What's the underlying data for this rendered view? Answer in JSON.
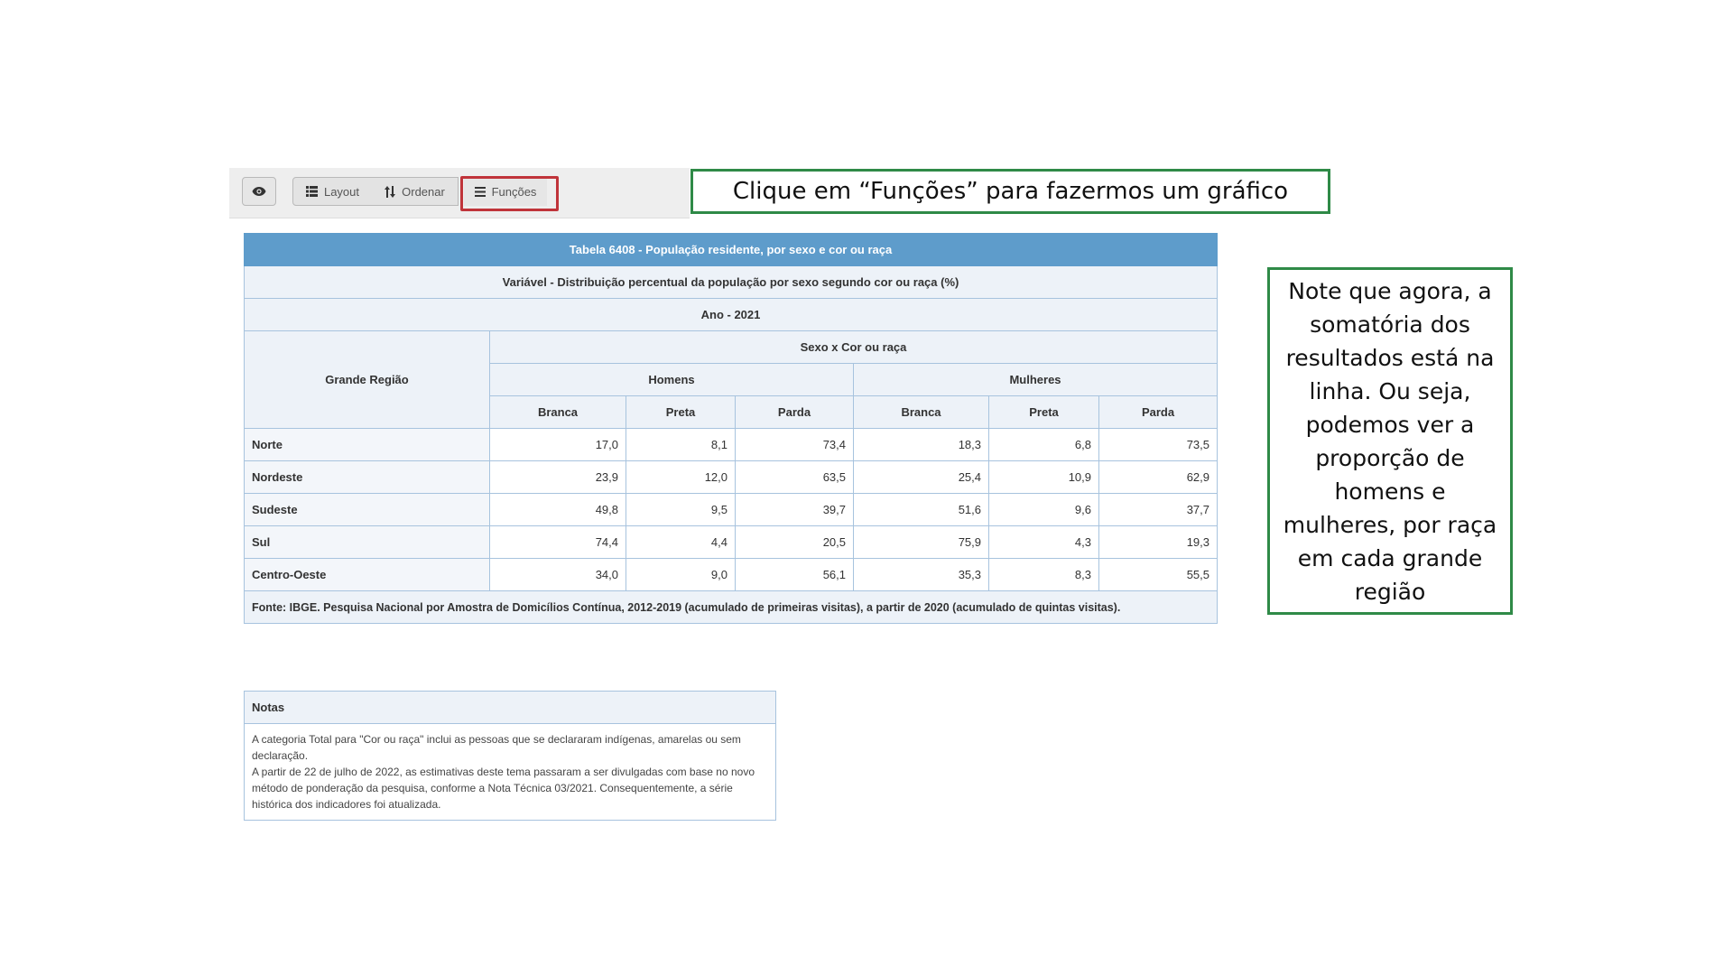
{
  "toolbar": {
    "layout_label": "Layout",
    "ordenar_label": "Ordenar",
    "funcoes_label": "Funções"
  },
  "callouts": {
    "top": "Clique em “Funções” para fazermos um gráfico",
    "right": "Note que agora, a somatória dos resultados está na linha. Ou seja, podemos ver a proporção de homens e mulheres, por raça em cada grande região"
  },
  "table": {
    "title": "Tabela 6408 - População residente, por sexo e cor ou raça",
    "variable": "Variável - Distribuição percentual da população por sexo segundo cor ou raça (%)",
    "year": "Ano - 2021",
    "row_header": "Grande Região",
    "group_header": "Sexo x Cor ou raça",
    "sexes": [
      "Homens",
      "Mulheres"
    ],
    "races": [
      "Branca",
      "Preta",
      "Parda",
      "Branca",
      "Preta",
      "Parda"
    ],
    "rows": [
      {
        "label": "Norte",
        "values": [
          "17,0",
          "8,1",
          "73,4",
          "18,3",
          "6,8",
          "73,5"
        ]
      },
      {
        "label": "Nordeste",
        "values": [
          "23,9",
          "12,0",
          "63,5",
          "25,4",
          "10,9",
          "62,9"
        ]
      },
      {
        "label": "Sudeste",
        "values": [
          "49,8",
          "9,5",
          "39,7",
          "51,6",
          "9,6",
          "37,7"
        ]
      },
      {
        "label": "Sul",
        "values": [
          "74,4",
          "4,4",
          "20,5",
          "75,9",
          "4,3",
          "19,3"
        ]
      },
      {
        "label": "Centro-Oeste",
        "values": [
          "34,0",
          "9,0",
          "56,1",
          "35,3",
          "8,3",
          "55,5"
        ]
      }
    ],
    "source": "Fonte: IBGE. Pesquisa Nacional por Amostra de Domicílios Contínua, 2012-2019 (acumulado de primeiras visitas), a partir de 2020 (acumulado de quintas visitas)."
  },
  "notes": {
    "header": "Notas",
    "lines": [
      "A categoria Total para \"Cor ou raça\" inclui as pessoas que se declararam indígenas, amarelas ou sem declaração.",
      "A partir de 22 de julho de 2022, as estimativas deste tema passaram a ser divulgadas com base no novo método de ponderação da pesquisa, conforme a Nota Técnica 03/2021. Consequentemente, a série histórica dos indicadores foi atualizada."
    ]
  },
  "icons": {
    "eye": "eye-icon",
    "layout": "list-icon",
    "ordenar": "sort-icon",
    "funcoes": "menu-icon"
  },
  "colors": {
    "table_header": "#5e9ccb",
    "highlight_red": "#c0343a",
    "callout_green": "#2f8a47"
  }
}
